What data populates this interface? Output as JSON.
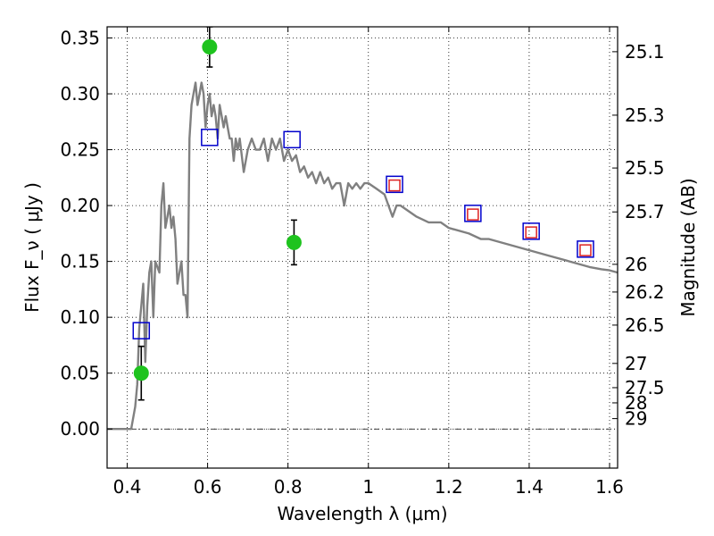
{
  "chart_data": {
    "type": "scatter",
    "title": "",
    "xlabel": "Wavelength  λ (μm)",
    "ylabel": "Flux  F_ν  ( μJy )",
    "ylabel_right": "Magnitude (AB)",
    "xlim": [
      0.35,
      1.62
    ],
    "ylim": [
      -0.035,
      0.36
    ],
    "xticks": [
      0.4,
      0.6,
      0.8,
      1.0,
      1.2,
      1.4,
      1.6
    ],
    "xtick_labels": [
      "0.4",
      "0.6",
      "0.8",
      "1",
      "1.2",
      "1.4",
      "1.6"
    ],
    "yticks": [
      0.0,
      0.05,
      0.1,
      0.15,
      0.2,
      0.25,
      0.3,
      0.35
    ],
    "ytick_labels": [
      "0.00",
      "0.05",
      "0.10",
      "0.15",
      "0.20",
      "0.25",
      "0.30",
      "0.35"
    ],
    "right_ticks": [
      {
        "label": "25.1",
        "flux": 0.3377
      },
      {
        "label": "25.3",
        "flux": 0.2809
      },
      {
        "label": "25.5",
        "flux": 0.2336
      },
      {
        "label": "25.7",
        "flux": 0.1943
      },
      {
        "label": "26",
        "flux": 0.1474
      },
      {
        "label": "26.2",
        "flux": 0.1226
      },
      {
        "label": "26.5",
        "flux": 0.093
      },
      {
        "label": "27",
        "flux": 0.0587
      },
      {
        "label": "27.5",
        "flux": 0.037
      },
      {
        "label": "28",
        "flux": 0.0234
      },
      {
        "label": "29",
        "flux": 0.0093
      }
    ],
    "grid": true,
    "series": [
      {
        "kind": "line",
        "color": "#808080",
        "x": [
          0.35,
          0.41,
          0.42,
          0.425,
          0.43,
          0.435,
          0.44,
          0.445,
          0.45,
          0.455,
          0.46,
          0.465,
          0.47,
          0.48,
          0.485,
          0.49,
          0.495,
          0.5,
          0.505,
          0.51,
          0.515,
          0.52,
          0.525,
          0.53,
          0.535,
          0.54,
          0.545,
          0.55,
          0.555,
          0.56,
          0.565,
          0.57,
          0.575,
          0.58,
          0.585,
          0.59,
          0.595,
          0.6,
          0.605,
          0.61,
          0.615,
          0.62,
          0.625,
          0.63,
          0.635,
          0.64,
          0.645,
          0.65,
          0.655,
          0.66,
          0.665,
          0.67,
          0.675,
          0.68,
          0.69,
          0.7,
          0.71,
          0.72,
          0.73,
          0.74,
          0.75,
          0.76,
          0.77,
          0.78,
          0.79,
          0.8,
          0.81,
          0.82,
          0.83,
          0.84,
          0.85,
          0.86,
          0.87,
          0.88,
          0.89,
          0.9,
          0.91,
          0.92,
          0.93,
          0.94,
          0.95,
          0.96,
          0.97,
          0.98,
          0.99,
          1.0,
          1.02,
          1.04,
          1.06,
          1.07,
          1.08,
          1.1,
          1.12,
          1.15,
          1.18,
          1.2,
          1.25,
          1.28,
          1.3,
          1.35,
          1.4,
          1.45,
          1.5,
          1.55,
          1.58,
          1.6,
          1.62
        ],
        "y": [
          0.0,
          0.0,
          0.02,
          0.04,
          0.09,
          0.11,
          0.13,
          0.06,
          0.11,
          0.14,
          0.15,
          0.1,
          0.15,
          0.14,
          0.2,
          0.22,
          0.18,
          0.19,
          0.2,
          0.18,
          0.19,
          0.17,
          0.13,
          0.14,
          0.15,
          0.12,
          0.12,
          0.1,
          0.26,
          0.29,
          0.3,
          0.31,
          0.29,
          0.3,
          0.31,
          0.3,
          0.27,
          0.29,
          0.3,
          0.28,
          0.29,
          0.28,
          0.26,
          0.29,
          0.28,
          0.27,
          0.28,
          0.27,
          0.26,
          0.26,
          0.24,
          0.26,
          0.25,
          0.26,
          0.23,
          0.25,
          0.26,
          0.25,
          0.25,
          0.26,
          0.24,
          0.26,
          0.25,
          0.26,
          0.24,
          0.25,
          0.24,
          0.245,
          0.23,
          0.235,
          0.225,
          0.23,
          0.22,
          0.23,
          0.22,
          0.225,
          0.215,
          0.22,
          0.22,
          0.2,
          0.22,
          0.215,
          0.22,
          0.215,
          0.22,
          0.22,
          0.215,
          0.21,
          0.19,
          0.2,
          0.2,
          0.195,
          0.19,
          0.185,
          0.185,
          0.18,
          0.175,
          0.17,
          0.17,
          0.165,
          0.16,
          0.155,
          0.15,
          0.145,
          0.143,
          0.142,
          0.14
        ]
      },
      {
        "kind": "errorbar",
        "marker": "circle",
        "color": "#1ec31e",
        "x": [
          0.435,
          0.605,
          0.815
        ],
        "y": [
          0.05,
          0.342,
          0.167
        ],
        "yerr": [
          0.024,
          0.018,
          0.02
        ]
      },
      {
        "kind": "scatter",
        "marker": "square-open",
        "color": "#0000cc",
        "x": [
          0.435,
          0.605,
          0.81,
          1.065,
          1.26,
          1.405,
          1.54
        ],
        "y": [
          0.088,
          0.261,
          0.259,
          0.219,
          0.193,
          0.177,
          0.161
        ]
      },
      {
        "kind": "scatter",
        "marker": "square-open-small",
        "color": "#dd2222",
        "x": [
          1.065,
          1.26,
          1.405,
          1.54
        ],
        "y": [
          0.218,
          0.192,
          0.176,
          0.16
        ]
      }
    ]
  }
}
